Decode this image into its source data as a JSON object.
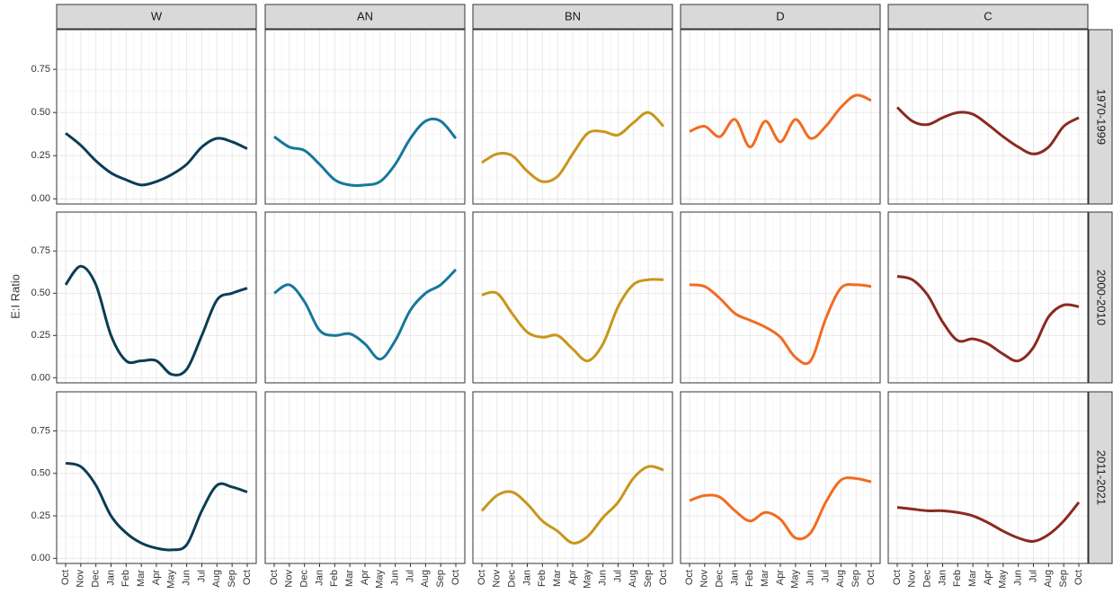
{
  "chart_data": {
    "type": "line",
    "y_label": "E:I Ratio",
    "rows": [
      "1970-1999",
      "2000-2010",
      "2011-2021"
    ],
    "categories": [
      "Oct",
      "Nov",
      "Dec",
      "Jan",
      "Feb",
      "Mar",
      "Apr",
      "May",
      "Jun",
      "Jul",
      "Aug",
      "Sep",
      "Oct"
    ],
    "ylim": [
      -0.03,
      0.98
    ],
    "yticks": [
      {
        "value": 0,
        "label": "0.00"
      },
      {
        "value": 0.25,
        "label": "0.25"
      },
      {
        "value": 0.5,
        "label": "0.50"
      },
      {
        "value": 0.75,
        "label": "0.75"
      }
    ],
    "grid": true,
    "series": [
      {
        "name": "W",
        "color": "#0b3d55",
        "values": [
          [
            0.38,
            0.31,
            0.22,
            0.15,
            0.11,
            0.08,
            0.1,
            0.14,
            0.2,
            0.3,
            0.35,
            0.33,
            0.29
          ],
          [
            0.55,
            0.66,
            0.55,
            0.25,
            0.1,
            0.1,
            0.1,
            0.02,
            0.05,
            0.25,
            0.46,
            0.5,
            0.53
          ],
          [
            0.56,
            0.54,
            0.43,
            0.25,
            0.15,
            0.09,
            0.06,
            0.05,
            0.08,
            0.28,
            0.43,
            0.42,
            0.39
          ]
        ]
      },
      {
        "name": "AN",
        "color": "#16789a",
        "values": [
          [
            0.36,
            0.3,
            0.28,
            0.2,
            0.11,
            0.08,
            0.08,
            0.1,
            0.2,
            0.35,
            0.45,
            0.45,
            0.35
          ],
          [
            0.5,
            0.55,
            0.45,
            0.28,
            0.25,
            0.26,
            0.2,
            0.11,
            0.22,
            0.4,
            0.5,
            0.55,
            0.64
          ],
          null
        ]
      },
      {
        "name": "BN",
        "color": "#c8961a",
        "values": [
          [
            0.21,
            0.26,
            0.25,
            0.16,
            0.1,
            0.13,
            0.26,
            0.38,
            0.39,
            0.37,
            0.44,
            0.5,
            0.42
          ],
          [
            0.49,
            0.5,
            0.38,
            0.27,
            0.24,
            0.25,
            0.17,
            0.1,
            0.2,
            0.42,
            0.55,
            0.58,
            0.58
          ],
          [
            0.28,
            0.37,
            0.39,
            0.32,
            0.22,
            0.16,
            0.09,
            0.13,
            0.24,
            0.33,
            0.47,
            0.54,
            0.52
          ]
        ]
      },
      {
        "name": "D",
        "color": "#f26b21",
        "values": [
          [
            0.39,
            0.42,
            0.36,
            0.46,
            0.3,
            0.45,
            0.33,
            0.46,
            0.35,
            0.42,
            0.53,
            0.6,
            0.57
          ],
          [
            0.55,
            0.54,
            0.47,
            0.38,
            0.34,
            0.3,
            0.24,
            0.12,
            0.1,
            0.35,
            0.53,
            0.55,
            0.54
          ],
          [
            0.34,
            0.37,
            0.36,
            0.28,
            0.22,
            0.27,
            0.23,
            0.12,
            0.15,
            0.33,
            0.46,
            0.47,
            0.45
          ]
        ]
      },
      {
        "name": "C",
        "color": "#8b2a1f",
        "values": [
          [
            0.53,
            0.45,
            0.43,
            0.47,
            0.5,
            0.49,
            0.43,
            0.36,
            0.3,
            0.26,
            0.3,
            0.42,
            0.47
          ],
          [
            0.6,
            0.58,
            0.49,
            0.33,
            0.22,
            0.23,
            0.2,
            0.14,
            0.1,
            0.18,
            0.36,
            0.43,
            0.42
          ],
          [
            0.3,
            0.29,
            0.28,
            0.28,
            0.27,
            0.25,
            0.21,
            0.16,
            0.12,
            0.1,
            0.14,
            0.22,
            0.33
          ]
        ]
      }
    ]
  }
}
